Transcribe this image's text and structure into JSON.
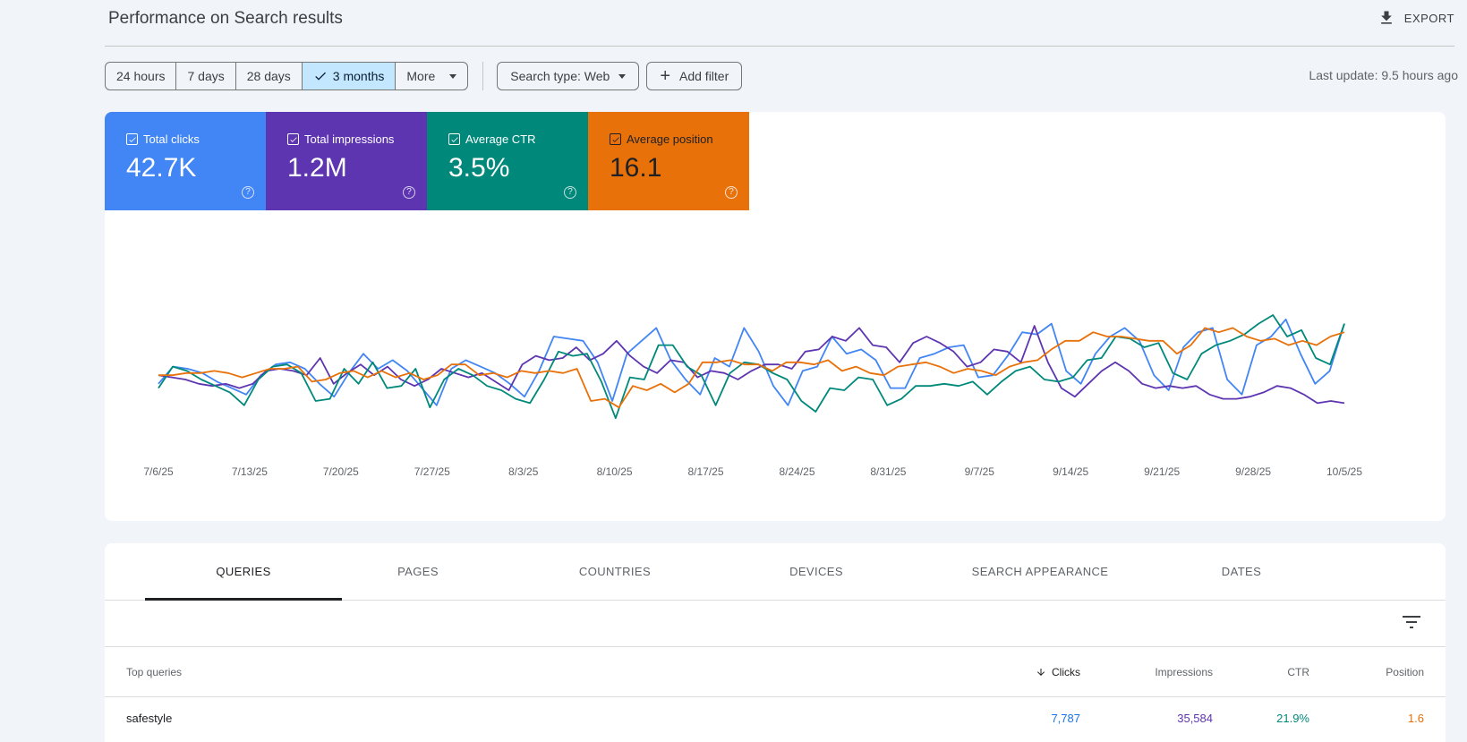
{
  "header": {
    "title": "Performance on Search results",
    "export_label": "EXPORT"
  },
  "toolbar": {
    "ranges": [
      "24 hours",
      "7 days",
      "28 days",
      "3 months",
      "More"
    ],
    "active_range": "3 months",
    "search_type": "Search type: Web",
    "add_filter": "Add filter",
    "last_update": "Last update: 9.5 hours ago"
  },
  "metrics": [
    {
      "label": "Total clicks",
      "value": "42.7K",
      "color": "#4285f4"
    },
    {
      "label": "Total impressions",
      "value": "1.2M",
      "color": "#5e35b1"
    },
    {
      "label": "Average CTR",
      "value": "3.5%",
      "color": "#00897b"
    },
    {
      "label": "Average position",
      "value": "16.1",
      "color": "#e8710a"
    }
  ],
  "chart_data": {
    "type": "line",
    "x_ticks": [
      "7/6/25",
      "7/13/25",
      "7/20/25",
      "7/27/25",
      "8/3/25",
      "8/10/25",
      "8/17/25",
      "8/24/25",
      "8/31/25",
      "9/7/25",
      "9/14/25",
      "9/21/25",
      "9/28/25",
      "10/5/25"
    ],
    "x_range": [
      "7/6/25",
      "10/5/25"
    ],
    "axis_labels": "none (y axes hidden, independent scale per metric, 0 = bottom of plot, 100 = top)",
    "series": [
      {
        "metric": "Total clicks",
        "color": "#4285f4",
        "values": [
          38,
          46,
          45,
          43,
          39,
          36,
          33,
          42,
          47,
          48,
          45,
          38,
          32,
          43,
          52,
          45,
          49,
          44,
          36,
          28,
          45,
          49,
          46,
          43,
          38,
          32,
          44,
          60,
          59,
          58,
          48,
          30,
          52,
          58,
          64,
          49,
          40,
          33,
          50,
          46,
          64,
          53,
          37,
          28,
          44,
          46,
          60,
          52,
          54,
          49,
          36,
          36,
          50,
          52,
          55,
          56,
          41,
          42,
          51,
          62,
          61,
          66,
          44,
          38,
          52,
          60,
          64,
          58,
          42,
          35,
          55,
          62,
          64,
          40,
          33,
          56,
          60,
          68,
          52,
          38,
          44,
          66
        ]
      },
      {
        "metric": "Total impressions",
        "color": "#5e35b1",
        "values": [
          42,
          41,
          40,
          38,
          37,
          38,
          36,
          38,
          44,
          45,
          44,
          42,
          50,
          38,
          43,
          47,
          42,
          46,
          40,
          37,
          40,
          45,
          43,
          41,
          43,
          39,
          35,
          47,
          51,
          49,
          50,
          55,
          49,
          52,
          58,
          51,
          46,
          43,
          49,
          48,
          41,
          44,
          43,
          40,
          44,
          47,
          47,
          45,
          53,
          54,
          60,
          58,
          64,
          56,
          55,
          48,
          57,
          60,
          57,
          53,
          46,
          48,
          54,
          53,
          48,
          65,
          48,
          36,
          32,
          38,
          44,
          48,
          44,
          38,
          36,
          37,
          36,
          37,
          33,
          31,
          31,
          32,
          34,
          37,
          36,
          33,
          29,
          30,
          29
        ]
      },
      {
        "metric": "Average CTR",
        "color": "#00897b",
        "values": [
          36,
          46,
          44,
          40,
          37,
          34,
          28,
          40,
          46,
          47,
          43,
          30,
          31,
          45,
          38,
          48,
          36,
          37,
          45,
          27,
          40,
          45,
          42,
          37,
          35,
          31,
          29,
          40,
          53,
          51,
          52,
          39,
          22,
          41,
          40,
          56,
          56,
          46,
          42,
          28,
          43,
          48,
          47,
          43,
          40,
          30,
          25,
          36,
          35,
          41,
          40,
          28,
          31,
          37,
          37,
          38,
          37,
          39,
          33,
          39,
          44,
          46,
          40,
          39,
          41,
          49,
          50,
          60,
          59,
          55,
          57,
          43,
          40,
          52,
          56,
          58,
          61,
          66,
          70,
          60,
          63,
          50,
          47,
          66
        ]
      },
      {
        "metric": "Average position",
        "color": "#e8710a",
        "values": [
          42,
          42,
          43,
          43,
          44,
          43,
          41,
          43,
          45,
          45,
          46,
          39,
          40,
          43,
          44,
          41,
          44,
          41,
          43,
          40,
          42,
          47,
          47,
          42,
          43,
          41,
          44,
          43,
          44,
          43,
          45,
          30,
          31,
          27,
          37,
          35,
          38,
          34,
          38,
          48,
          48,
          49,
          47,
          47,
          44,
          48,
          48,
          47,
          49,
          44,
          46,
          43,
          42,
          46,
          47,
          48,
          46,
          43,
          45,
          44,
          42,
          46,
          48,
          49,
          54,
          58,
          58,
          62,
          60,
          60,
          59,
          58,
          58,
          52,
          56,
          64,
          62,
          64,
          60,
          58,
          59,
          56,
          58,
          56,
          60,
          62
        ]
      }
    ]
  },
  "table": {
    "tabs": [
      "QUERIES",
      "PAGES",
      "COUNTRIES",
      "DEVICES",
      "SEARCH APPEARANCE",
      "DATES"
    ],
    "active_tab": "QUERIES",
    "columns": {
      "query": "Top queries",
      "clicks": "Clicks",
      "impressions": "Impressions",
      "ctr": "CTR",
      "position": "Position"
    },
    "rows": [
      {
        "query": "safestyle",
        "clicks": "7,787",
        "impressions": "35,584",
        "ctr": "21.9%",
        "position": "1.6"
      }
    ]
  }
}
